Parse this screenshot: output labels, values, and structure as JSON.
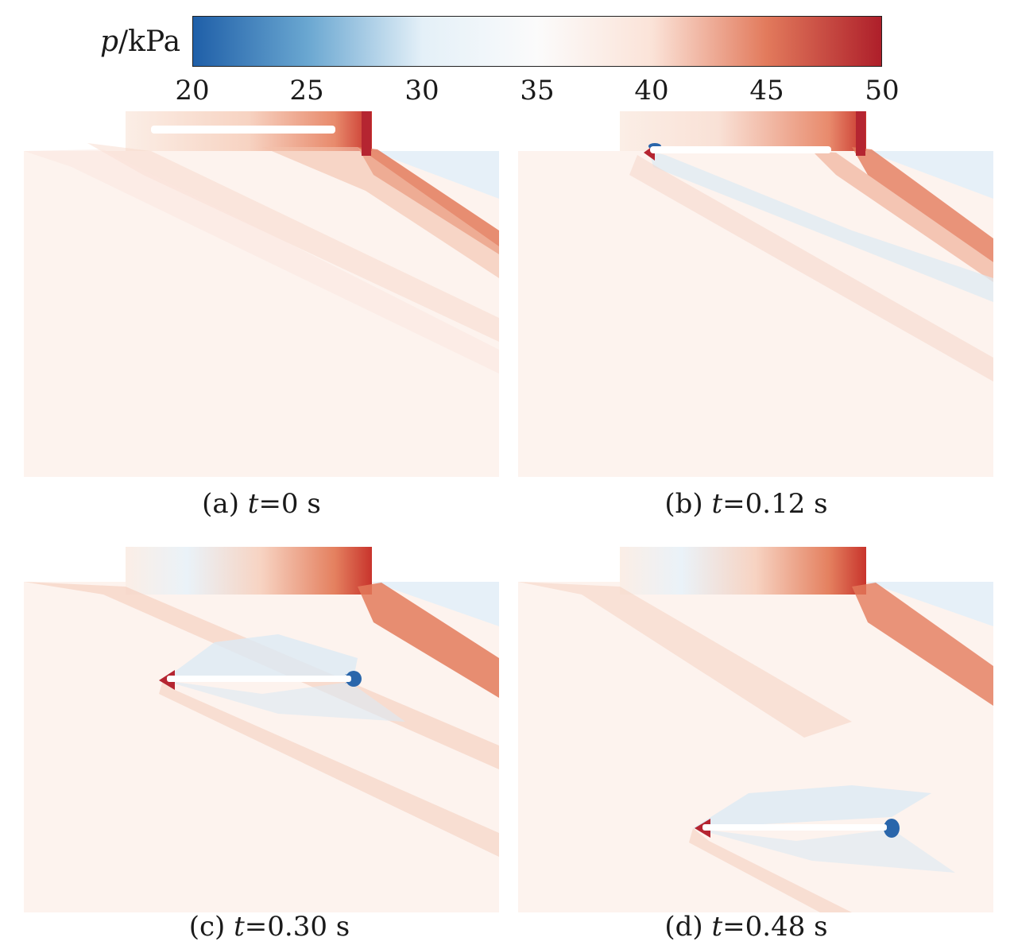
{
  "colorbar": {
    "variable": "p",
    "unit": "/kPa",
    "ticks": [
      "20",
      "25",
      "30",
      "35",
      "40",
      "45",
      "50"
    ],
    "range": [
      20,
      50
    ],
    "colors": [
      "#1f5fa8",
      "#6aa7d1",
      "#e4f0f8",
      "#fbfbfb",
      "#fbe3d8",
      "#e27a5c",
      "#ae1f2a"
    ]
  },
  "panels": [
    {
      "label": "(a) ",
      "tvar": "t",
      "value": "=0 s",
      "time_s": 0
    },
    {
      "label": "(b) ",
      "tvar": "t",
      "value": "=0.12 s",
      "time_s": 0.12
    },
    {
      "label": "(c) ",
      "tvar": "t",
      "value": "=0.30 s",
      "time_s": 0.3
    },
    {
      "label": "(d) ",
      "tvar": "t",
      "value": "=0.48 s",
      "time_s": 0.48
    }
  ]
}
